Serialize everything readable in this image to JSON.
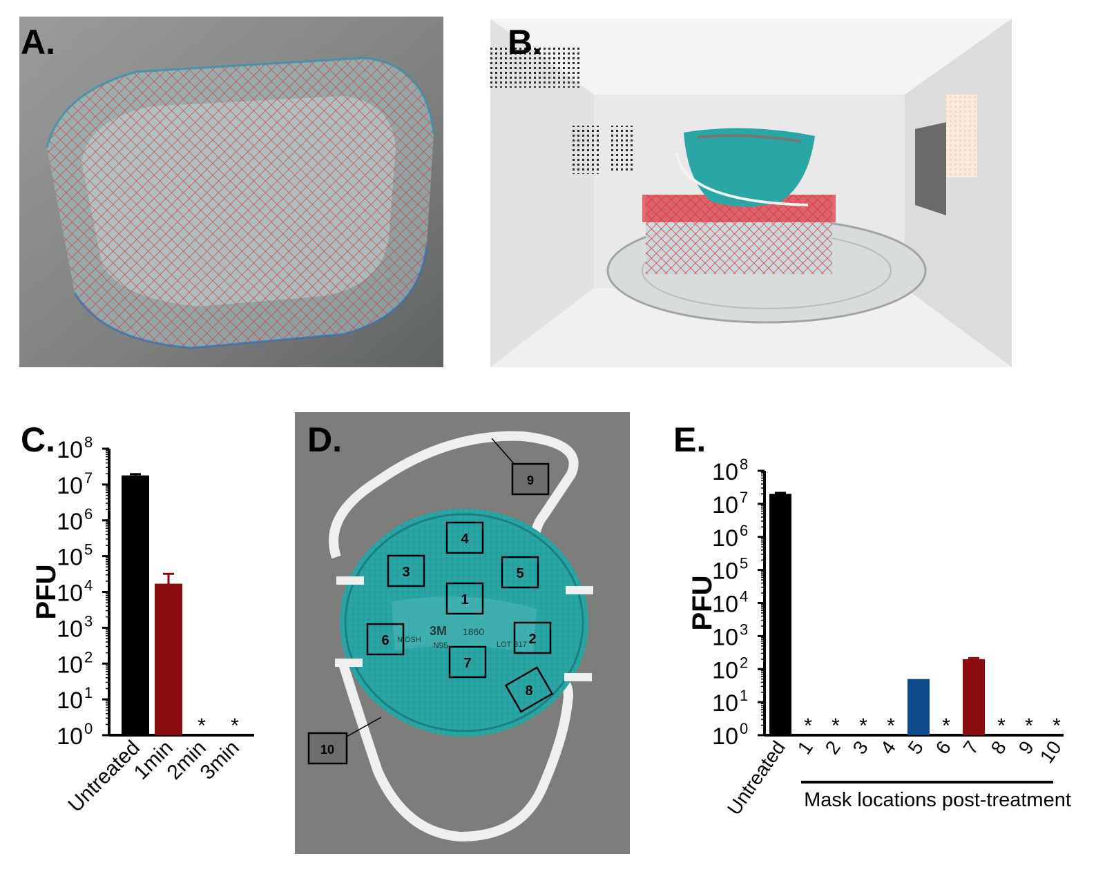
{
  "panels": {
    "a": {
      "letter": "A."
    },
    "b": {
      "letter": "B."
    },
    "c": {
      "letter": "C."
    },
    "d": {
      "letter": "D."
    },
    "e": {
      "letter": "E."
    }
  },
  "mask": {
    "print_brand": "3M",
    "print_model": "1860",
    "print_class": "N95",
    "print_lot": "LOT B17",
    "print_niosh": "NIOSH",
    "locations": [
      "1",
      "2",
      "3",
      "4",
      "5",
      "6",
      "7",
      "8",
      "9",
      "10"
    ]
  },
  "colors": {
    "black_bar": "#000000",
    "red_bar": "#8b0c0f",
    "blue_bar": "#0d4a8c",
    "mask_teal": "#2aa6a6",
    "net_red": "#e0303c"
  },
  "chart_data": [
    {
      "type": "bar",
      "panel": "C.",
      "ylabel": "PFU",
      "yscale": "log",
      "ylim": [
        1,
        100000000
      ],
      "yticks": [
        {
          "base": "10",
          "exp": "0"
        },
        {
          "base": "10",
          "exp": "1"
        },
        {
          "base": "10",
          "exp": "2"
        },
        {
          "base": "10",
          "exp": "3"
        },
        {
          "base": "10",
          "exp": "4"
        },
        {
          "base": "10",
          "exp": "5"
        },
        {
          "base": "10",
          "exp": "6"
        },
        {
          "base": "10",
          "exp": "7"
        },
        {
          "base": "10",
          "exp": "8"
        }
      ],
      "categories": [
        "Untreated",
        "1min",
        "2min",
        "3min"
      ],
      "values": [
        18000000,
        17000,
        0,
        0
      ],
      "errors": [
        1500000,
        15000,
        0,
        0
      ],
      "colors": [
        "#000000",
        "#8b0c0f",
        "#000000",
        "#000000"
      ],
      "below_detection": [
        false,
        false,
        true,
        true
      ],
      "marker": "*"
    },
    {
      "type": "bar",
      "panel": "E.",
      "ylabel": "PFU",
      "yscale": "log",
      "ylim": [
        1,
        100000000
      ],
      "yticks": [
        {
          "base": "10",
          "exp": "0"
        },
        {
          "base": "10",
          "exp": "1"
        },
        {
          "base": "10",
          "exp": "2"
        },
        {
          "base": "10",
          "exp": "3"
        },
        {
          "base": "10",
          "exp": "4"
        },
        {
          "base": "10",
          "exp": "5"
        },
        {
          "base": "10",
          "exp": "6"
        },
        {
          "base": "10",
          "exp": "7"
        },
        {
          "base": "10",
          "exp": "8"
        }
      ],
      "categories": [
        "Untreated",
        "1",
        "2",
        "3",
        "4",
        "5",
        "6",
        "7",
        "8",
        "9",
        "10"
      ],
      "values": [
        20000000,
        0,
        0,
        0,
        0,
        50,
        0,
        200,
        0,
        0,
        0
      ],
      "errors": [
        1500000,
        0,
        0,
        0,
        0,
        0,
        0,
        15,
        0,
        0,
        0
      ],
      "colors": [
        "#000000",
        "#000000",
        "#000000",
        "#000000",
        "#000000",
        "#0d4a8c",
        "#000000",
        "#8b0c0f",
        "#000000",
        "#000000",
        "#000000"
      ],
      "below_detection": [
        false,
        true,
        true,
        true,
        true,
        false,
        true,
        false,
        true,
        true,
        true
      ],
      "marker": "*",
      "group_label": "Mask locations post-treatment"
    }
  ]
}
